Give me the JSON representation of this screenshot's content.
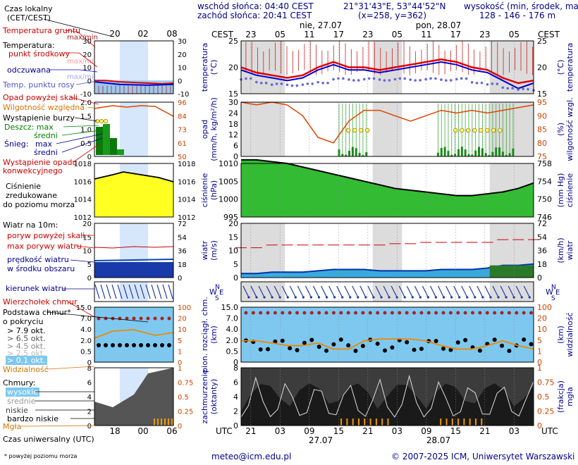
{
  "header": {
    "sunrise": "wschód słońca: 04:40 CEST",
    "sunset": "zachód słońca: 20:41 CEST",
    "coords": "21°31'43\"E, 53°44'52\"N",
    "grid": "(x=258,  y=362)",
    "height_label": "wysokość (min, środek, max)",
    "height_values": "128 - 146 - 176 m"
  },
  "legend": {
    "time_zone": "Czas lokalny",
    "time_zone_sub": "(CET/CEST)",
    "soil_temp": "Temperatura gruntu",
    "max_min": "max/min",
    "temperature": "Temperatura:",
    "mid_point": "punkt środkowy",
    "max_min2": "max/min",
    "felt": "odczuwana",
    "max_min3": "max/min",
    "dew": "Temp. punktu rosy",
    "precip_thresh": "Opad powyżej skali",
    "humidity": "Wilgotność względna",
    "storm": "Wystąpienie burzy",
    "rain": "Deszcz: max",
    "rain_mid": "średni",
    "snow": "Śnieg:",
    "snow_max": "max",
    "snow_mid": "średni",
    "conv": "Wystąpienie opadu",
    "conv2": "konwekcyjnego",
    "pressure": "Ciśnienie",
    "pressure2": "zredukowane",
    "pressure3": "do poziomu morza",
    "wind_at": "Wiatr na 10m:",
    "gust_thresh": "poryw powyżej skali",
    "gust_max": "max porywy wiatru",
    "wind_speed": "prędkość wiatru",
    "wind_area": "w środku obszaru",
    "wind_dir": "kierunek wiatru",
    "cloud_top": "Wierzchołek chmur",
    "cloud_base": "Podstawa chmur*",
    "cloud_base2": "o pokryciu",
    "okt79": "> 7.9 okt.",
    "okt65": "> 6.5 okt.",
    "okt45": "> 4.5 okt.",
    "okt25": "> 2.5 okt.",
    "okt01": "> 0.1 okt.",
    "visibility": "Widzialność",
    "clouds": "Chmury:",
    "high": "wysokie",
    "mid": "średnie",
    "low": "niskie",
    "very_low": "bardzo niskie",
    "fog": "Mgła",
    "utc_label": "Czas uniwersalny (UTC)",
    "footnote": "* powyżej poziomu morza"
  },
  "top_axis": {
    "cest": "CEST",
    "hours": [
      "23",
      "05",
      "11",
      "17",
      "23",
      "05",
      "11",
      "17",
      "23",
      "05"
    ],
    "day1": "nie, 27.07",
    "day2": "pon, 28.07"
  },
  "bottom_axis": {
    "utc": "UTC",
    "hours": [
      "21",
      "03",
      "09",
      "15",
      "21",
      "03",
      "09",
      "15",
      "21",
      "03"
    ],
    "date1": "27.07",
    "date2": "28.07"
  },
  "mini_axis": {
    "top_hours": [
      "20",
      "02",
      "08"
    ],
    "bottom_hours": [
      "18",
      "00",
      "06"
    ]
  },
  "panels": {
    "temp": {
      "left_label": "temperatura",
      "left_unit": "(°C)",
      "right_label": "temperatura",
      "right_unit": "(°C)",
      "left_ticks": [
        "25",
        "20",
        "15"
      ],
      "right_ticks": [
        "25",
        "20",
        "15"
      ]
    },
    "precip": {
      "left_label": "opad",
      "left_unit": "(mm/h, kg/m²/h)",
      "right_label": "wilgotność wzgl.",
      "right_unit": "(%)",
      "left_ticks": [
        "30",
        "24",
        "18",
        "12",
        "6",
        "0"
      ],
      "right_ticks": [
        "95",
        "90",
        "85",
        "80",
        "75"
      ]
    },
    "pressure": {
      "left_label": "ciśnienie",
      "left_unit": "(hPa)",
      "right_label": "ciśnienie",
      "right_unit": "(mm Hg)",
      "left_ticks": [
        "1010",
        "1005",
        "1000",
        "995"
      ],
      "right_ticks": [
        "758",
        "754",
        "750",
        "746"
      ]
    },
    "wind": {
      "left_label": "wiatr",
      "left_unit": "(m/s)",
      "right_label": "wiatr",
      "right_unit": "(km/h)",
      "left_ticks": [
        "20",
        "15",
        "10",
        "5",
        "0"
      ],
      "right_ticks": [
        "72",
        "54",
        "36",
        "18",
        "0"
      ]
    },
    "clouds": {
      "left_label": "pion. rozciągł. chm.",
      "left_unit": "(km)",
      "right_label": "widzialność",
      "right_unit": "(km)",
      "left_ticks": [
        "15.0",
        "7.0",
        "4.0",
        "2.0",
        "0.5",
        "0"
      ],
      "right_ticks": [
        "100",
        "20",
        "10",
        "5",
        "1",
        "0"
      ]
    },
    "cover": {
      "left_label": "zachmurzenie",
      "left_unit": "(oktanty)",
      "right_label": "mgła",
      "right_unit": "(frakcja)",
      "left_ticks": [
        "8",
        "6",
        "4",
        "2",
        "0"
      ],
      "right_ticks": [
        "1",
        "0.75",
        "0.5",
        "0.25",
        "0"
      ]
    }
  },
  "mini_ticks": {
    "temp_l": [
      "30",
      "20",
      "10",
      "0",
      "-10"
    ],
    "temp_r": [
      "30",
      "20",
      "10",
      "0",
      "-10"
    ],
    "prec_l": [
      "2.0",
      "1.5",
      "1.0",
      "0.5",
      "0"
    ],
    "prec_r": [
      "96",
      "84",
      "73",
      "61",
      "50"
    ],
    "pres_l": [
      "1018",
      "1016",
      "1014",
      "1012"
    ],
    "pres_r": [
      "1018",
      "1016",
      "1014",
      "1012"
    ],
    "wind_l": [
      "20",
      "15",
      "10",
      "5",
      "0"
    ],
    "wind_r": [
      "72",
      "54",
      "36",
      "18",
      "0"
    ],
    "cl_l": [
      "15.0",
      "7.0",
      "4.0",
      "2.0",
      "0.5",
      "0"
    ],
    "cl_r": [
      "100",
      "20",
      "10",
      "5",
      "1",
      "0"
    ],
    "cov_l": [
      "8",
      "6",
      "4",
      "2",
      "0"
    ],
    "cov_r": [
      "1",
      "0.75",
      "0.5",
      "0.25",
      "0"
    ]
  },
  "footer": {
    "email": "meteo@icm.edu.pl",
    "copyright": "© 2007-2025 ICM, Uniwersytet Warszawski"
  },
  "colors": {
    "navy": "#00008b",
    "red": "#cc0000",
    "orange": "#d47500",
    "green": "#008000",
    "night": "#d9d9d9"
  },
  "chart_data": {
    "type": "line",
    "x_hours_utc": [
      21,
      0,
      3,
      6,
      9,
      12,
      15,
      18,
      21,
      0,
      3,
      6,
      9,
      12,
      15,
      18,
      21,
      0,
      3,
      6
    ],
    "series": [
      {
        "name": "punkt środkowy",
        "values": [
          20,
          19,
          18.5,
          18,
          18.5,
          20,
          21,
          20,
          20,
          19.5,
          20,
          20.5,
          21,
          21.5,
          21,
          20,
          19.5,
          18,
          17,
          17.5
        ]
      },
      {
        "name": "odczuwana",
        "values": [
          19.5,
          18.5,
          18,
          17.5,
          18,
          19.5,
          20.5,
          19.5,
          19.5,
          19,
          19.5,
          20,
          20.5,
          21,
          20.5,
          19.5,
          19,
          17.5,
          16,
          17
        ]
      },
      {
        "name": "Temp. punktu rosy",
        "values": [
          18,
          17.5,
          17,
          17,
          17,
          17.5,
          18,
          18,
          18,
          18,
          18,
          18,
          18,
          18,
          18,
          17.5,
          17,
          16.5,
          16,
          16
        ]
      },
      {
        "name": "Wilgotność względna",
        "values": [
          95,
          94,
          95,
          94,
          90,
          82,
          80,
          88,
          92,
          92,
          90,
          88,
          90,
          92,
          91,
          92,
          91,
          92,
          93,
          94
        ]
      },
      {
        "name": "Ciśnienie",
        "values": [
          1011,
          1011,
          1010.5,
          1010,
          1009,
          1008,
          1007,
          1006,
          1005,
          1004,
          1003,
          1002.5,
          1002,
          1001.5,
          1001,
          1001,
          1001.5,
          1002,
          1003,
          1004.5
        ]
      },
      {
        "name": "prędkość wiatru",
        "values": [
          1.5,
          1.5,
          2,
          2,
          2,
          2.5,
          3,
          3,
          3,
          2.5,
          2.5,
          2.5,
          2.5,
          3,
          3,
          3,
          3.5,
          4.5,
          4.5,
          5
        ]
      },
      {
        "name": "max porywy wiatru",
        "values": [
          11,
          11,
          12,
          12,
          12,
          12,
          12,
          12,
          12,
          12,
          12.5,
          12.5,
          13,
          13,
          13,
          13,
          13,
          14,
          14,
          14
        ]
      },
      {
        "name": "Widzialność",
        "values": [
          5,
          5,
          4,
          3,
          3,
          4,
          2,
          2,
          5,
          6,
          6,
          6,
          5,
          3,
          2,
          2,
          3,
          5,
          3,
          2
        ]
      }
    ],
    "ylim_temp": [
      15,
      25
    ],
    "ylim_humidity": [
      75,
      95
    ],
    "ylim_pressure": [
      995,
      1010
    ],
    "ylim_wind": [
      0,
      20
    ]
  }
}
